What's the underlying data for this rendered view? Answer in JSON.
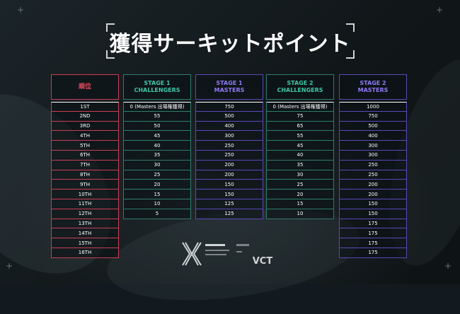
{
  "title": "獲得サーキットポイント",
  "columns": [
    {
      "header_line1": "順位",
      "header_line2": "",
      "style": "rank",
      "values": [
        "1ST",
        "2ND",
        "3RD",
        "4TH",
        "5TH",
        "6TH",
        "7TH",
        "8TH",
        "9TH",
        "10TH",
        "11TH",
        "12TH",
        "13TH",
        "14TH",
        "15TH",
        "16TH"
      ]
    },
    {
      "header_line1": "STAGE 1",
      "header_line2": "CHALLENGERS",
      "style": "green",
      "values": [
        "0 (Masters 出場権獲得)",
        "55",
        "50",
        "45",
        "40",
        "35",
        "30",
        "25",
        "20",
        "15",
        "10",
        "5"
      ]
    },
    {
      "header_line1": "STAGE 1",
      "header_line2": "MASTERS",
      "style": "purple",
      "values": [
        "750",
        "500",
        "400",
        "300",
        "250",
        "250",
        "200",
        "200",
        "150",
        "150",
        "125",
        "125"
      ]
    },
    {
      "header_line1": "STAGE 2",
      "header_line2": "CHALLENGERS",
      "style": "green",
      "values": [
        "0 (Masters 出場権獲得)",
        "75",
        "65",
        "55",
        "45",
        "40",
        "35",
        "30",
        "25",
        "20",
        "15",
        "10"
      ]
    },
    {
      "header_line1": "STAGE 2",
      "header_line2": "MASTERS",
      "style": "purple",
      "values": [
        "1000",
        "750",
        "500",
        "400",
        "300",
        "300",
        "250",
        "250",
        "200",
        "200",
        "150",
        "150",
        "175",
        "175",
        "175",
        "175"
      ]
    }
  ],
  "colors": {
    "rank": "#e34a5c",
    "challengers": "#3fc6a6",
    "masters": "#8f79f5",
    "background": "#121a1f"
  },
  "logo": {
    "mark": "VCT",
    "icon": "valorant-champions-tour-logo-icon"
  }
}
